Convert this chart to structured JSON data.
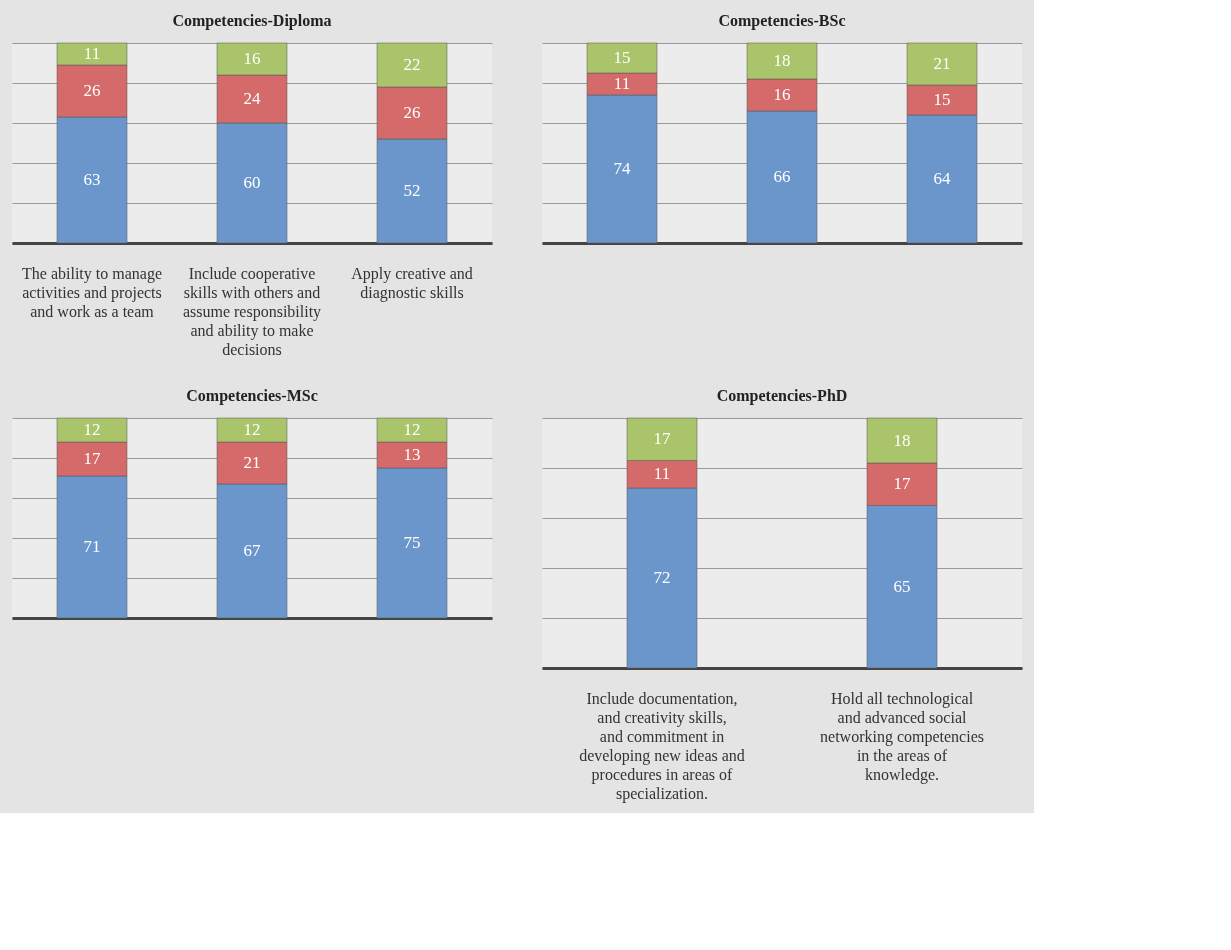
{
  "chart_data": [
    {
      "type": "bar",
      "title": "Competencies-Diploma",
      "stacked": true,
      "data_labels": true,
      "grid": "y",
      "tick_labels": "x",
      "ylim": [
        0,
        100
      ],
      "yticks": [
        {
          "value": 0,
          "label": null
        },
        {
          "value": 20,
          "label": null
        },
        {
          "value": 40,
          "label": null
        },
        {
          "value": 60,
          "label": null
        },
        {
          "value": 80,
          "label": null
        },
        {
          "value": 100,
          "label": null
        }
      ],
      "categories": [
        "The ability to manage activities and projects and work as a team",
        "Include cooperative skills with others and assume responsibility and ability to make decisions",
        "Apply creative and diagnostic skills"
      ],
      "series": [
        {
          "color": "#6a96cc",
          "values": [
            63,
            60,
            52
          ]
        },
        {
          "color": "#d46a6a",
          "values": [
            26,
            24,
            26
          ]
        },
        {
          "color": "#a9c46a",
          "values": [
            11,
            16,
            22
          ]
        }
      ]
    },
    {
      "type": "bar",
      "title": "Competencies-BSc",
      "stacked": true,
      "data_labels": true,
      "grid": "y",
      "tick_labels": "x",
      "ylim": [
        0,
        100
      ],
      "yticks": [
        {
          "value": 0,
          "label": null
        },
        {
          "value": 20,
          "label": null
        },
        {
          "value": 40,
          "label": null
        },
        {
          "value": 60,
          "label": null
        },
        {
          "value": 80,
          "label": null
        },
        {
          "value": 100,
          "label": null
        }
      ],
      "categories": [
        null,
        null,
        null
      ],
      "series": [
        {
          "color": "#6a96cc",
          "values": [
            74,
            66,
            64
          ]
        },
        {
          "color": "#d46a6a",
          "values": [
            11,
            16,
            15
          ]
        },
        {
          "color": "#a9c46a",
          "values": [
            15,
            18,
            21
          ]
        }
      ]
    },
    {
      "type": "bar",
      "title": "Competencies-MSc",
      "stacked": true,
      "data_labels": true,
      "grid": "y",
      "tick_labels": "x",
      "ylim": [
        0,
        100
      ],
      "yticks": [
        {
          "value": 0,
          "label": null
        },
        {
          "value": 20,
          "label": null
        },
        {
          "value": 40,
          "label": null
        },
        {
          "value": 60,
          "label": null
        },
        {
          "value": 80,
          "label": null
        },
        {
          "value": 100,
          "label": null
        }
      ],
      "categories": [
        null,
        null,
        null
      ],
      "series": [
        {
          "color": "#6a96cc",
          "values": [
            71,
            67,
            75
          ]
        },
        {
          "color": "#d46a6a",
          "values": [
            17,
            21,
            13
          ]
        },
        {
          "color": "#a9c46a",
          "values": [
            12,
            12,
            12
          ]
        }
      ]
    },
    {
      "type": "bar",
      "title": "Competencies-PhD",
      "stacked": true,
      "data_labels": true,
      "grid": "y",
      "tick_labels": "x",
      "ylim": [
        0,
        100
      ],
      "yticks": [
        {
          "value": 0,
          "label": null
        },
        {
          "value": 20,
          "label": null
        },
        {
          "value": 40,
          "label": null
        },
        {
          "value": 60,
          "label": null
        },
        {
          "value": 80,
          "label": null
        },
        {
          "value": 100,
          "label": null
        }
      ],
      "categories": [
        "Include documentation, and creativity skills, and commitment in developing new ideas and procedures in areas of specialization.",
        "Hold all technological and advanced social networking competencies in the areas of knowledge."
      ],
      "series": [
        {
          "color": "#6a96cc",
          "values": [
            72,
            65
          ]
        },
        {
          "color": "#d46a6a",
          "values": [
            11,
            17
          ]
        },
        {
          "color": "#a9c46a",
          "values": [
            17,
            18
          ]
        }
      ]
    }
  ]
}
